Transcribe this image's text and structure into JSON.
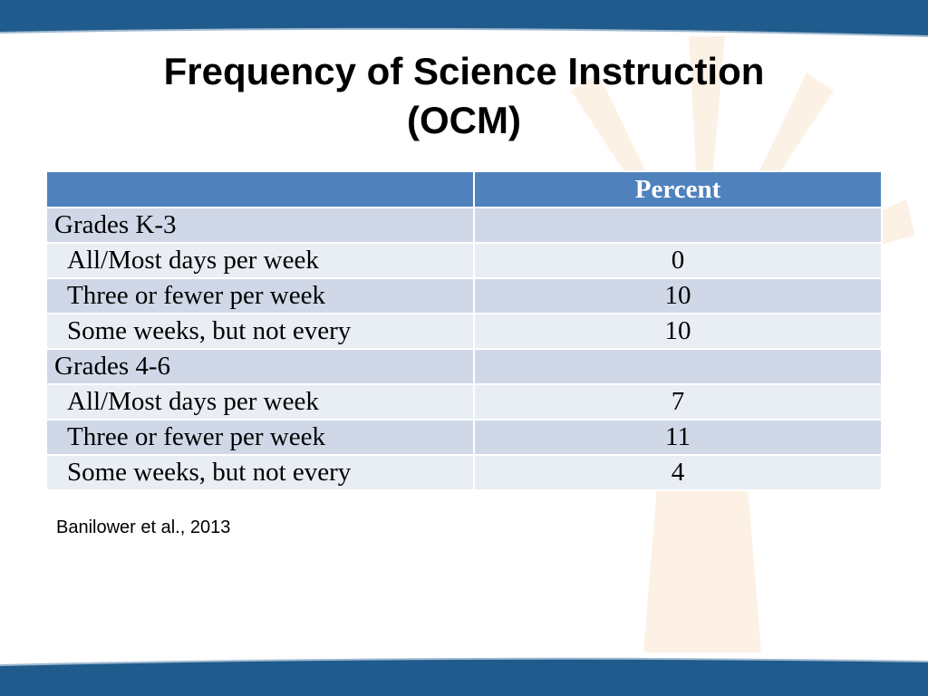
{
  "slide": {
    "title_line1": "Frequency of Science Instruction",
    "title_line2": "(OCM)",
    "citation": "Banilower et al., 2013",
    "colors": {
      "band": "#1f5b8c",
      "header": "#4f81bd",
      "row_dark": "#d0d8e8",
      "row_light": "#e9edf4",
      "watermark": "#f6c99a"
    }
  },
  "table": {
    "headers": [
      "",
      "Percent"
    ],
    "rows": [
      {
        "label": "Grades K-3",
        "value": "",
        "kind": "group"
      },
      {
        "label": "All/Most days per week",
        "value": "0",
        "kind": "item"
      },
      {
        "label": "Three or fewer per week",
        "value": "10",
        "kind": "item"
      },
      {
        "label": "Some weeks, but not every",
        "value": "10",
        "kind": "item"
      },
      {
        "label": "Grades 4-6",
        "value": "",
        "kind": "group"
      },
      {
        "label": "All/Most days per week",
        "value": "7",
        "kind": "item"
      },
      {
        "label": "Three or fewer per week",
        "value": "11",
        "kind": "item"
      },
      {
        "label": "Some weeks, but not every",
        "value": "4",
        "kind": "item"
      }
    ]
  }
}
